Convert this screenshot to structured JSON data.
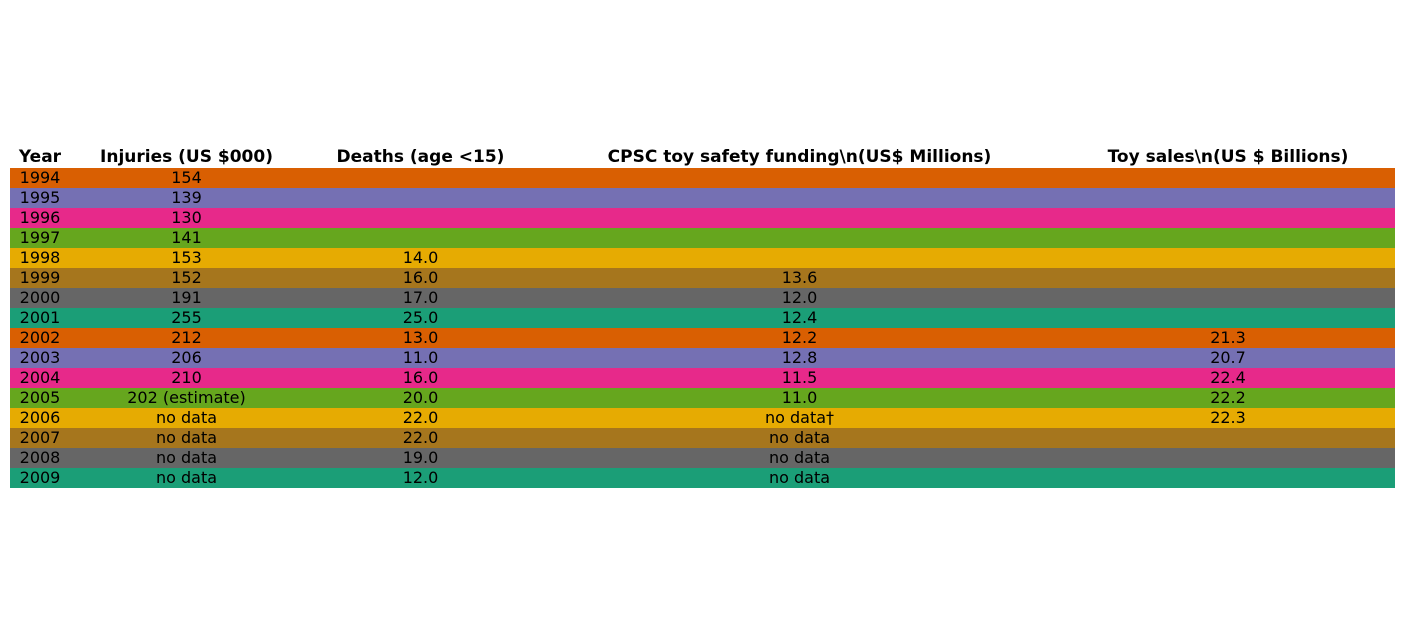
{
  "chart_data": {
    "type": "table",
    "columns": [
      "Year",
      "Injuries (US $000)",
      "Deaths (age <15)",
      "CPSC toy safety funding\\n(US$ Millions)",
      "Toy sales\\n(US $ Billions)"
    ],
    "rows": [
      {
        "cells": [
          "1994",
          "154",
          "",
          "",
          ""
        ],
        "color": "#d95f02"
      },
      {
        "cells": [
          "1995",
          "139",
          "",
          "",
          ""
        ],
        "color": "#7570b3"
      },
      {
        "cells": [
          "1996",
          "130",
          "",
          "",
          ""
        ],
        "color": "#e7298a"
      },
      {
        "cells": [
          "1997",
          "141",
          "",
          "",
          ""
        ],
        "color": "#66a61e"
      },
      {
        "cells": [
          "1998",
          "153",
          "14.0",
          "",
          ""
        ],
        "color": "#e6ab02"
      },
      {
        "cells": [
          "1999",
          "152",
          "16.0",
          "13.6",
          ""
        ],
        "color": "#a6761d"
      },
      {
        "cells": [
          "2000",
          "191",
          "17.0",
          "12.0",
          ""
        ],
        "color": "#666666"
      },
      {
        "cells": [
          "2001",
          "255",
          "25.0",
          "12.4",
          ""
        ],
        "color": "#1b9e77"
      },
      {
        "cells": [
          "2002",
          "212",
          "13.0",
          "12.2",
          "21.3"
        ],
        "color": "#d95f02"
      },
      {
        "cells": [
          "2003",
          "206",
          "11.0",
          "12.8",
          "20.7"
        ],
        "color": "#7570b3"
      },
      {
        "cells": [
          "2004",
          "210",
          "16.0",
          "11.5",
          "22.4"
        ],
        "color": "#e7298a"
      },
      {
        "cells": [
          "2005",
          "202 (estimate)",
          "20.0",
          "11.0",
          "22.2"
        ],
        "color": "#66a61e"
      },
      {
        "cells": [
          "2006",
          "no data",
          "22.0",
          "no data†",
          "22.3"
        ],
        "color": "#e6ab02"
      },
      {
        "cells": [
          "2007",
          "no data",
          "22.0",
          "no data",
          ""
        ],
        "color": "#a6761d"
      },
      {
        "cells": [
          "2008",
          "no data",
          "19.0",
          "no data",
          ""
        ],
        "color": "#666666"
      },
      {
        "cells": [
          "2009",
          "no data",
          "12.0",
          "no data",
          ""
        ],
        "color": "#1b9e77"
      }
    ]
  }
}
